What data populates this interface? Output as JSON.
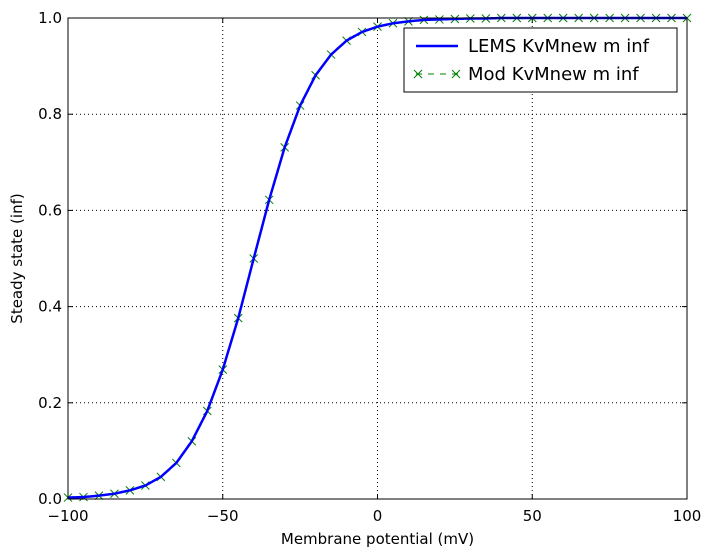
{
  "chart_data": {
    "type": "line",
    "xlabel": "Membrane potential (mV)",
    "ylabel": "Steady state (inf)",
    "xlim": [
      -100,
      100
    ],
    "ylim": [
      0,
      1
    ],
    "xticks": [
      -100,
      -50,
      0,
      50,
      100
    ],
    "xtick_labels": [
      "−100",
      "−50",
      "0",
      "50",
      "100"
    ],
    "yticks": [
      0,
      0.2,
      0.4,
      0.6,
      0.8,
      1.0
    ],
    "ytick_labels": [
      "0.0",
      "0.2",
      "0.4",
      "0.6",
      "0.8",
      "1.0"
    ],
    "grid": true,
    "legend_position": "top-right",
    "series": [
      {
        "name": "LEMS KvMnew m inf",
        "style": "solid line",
        "color": "#0000ff",
        "x": [
          -100,
          -95,
          -90,
          -85,
          -80,
          -75,
          -70,
          -65,
          -60,
          -55,
          -50,
          -45,
          -40,
          -35,
          -30,
          -25,
          -20,
          -15,
          -10,
          -5,
          0,
          5,
          10,
          15,
          20,
          25,
          30,
          35,
          40,
          45,
          50,
          55,
          60,
          65,
          70,
          75,
          80,
          85,
          90,
          95,
          100
        ],
        "y": [
          0.003,
          0.004,
          0.007,
          0.011,
          0.018,
          0.028,
          0.046,
          0.075,
          0.12,
          0.183,
          0.269,
          0.376,
          0.5,
          0.622,
          0.731,
          0.818,
          0.881,
          0.924,
          0.953,
          0.971,
          0.982,
          0.989,
          0.993,
          0.996,
          0.997,
          0.998,
          0.999,
          0.999,
          1.0,
          1.0,
          1.0,
          1.0,
          1.0,
          1.0,
          1.0,
          1.0,
          1.0,
          1.0,
          1.0,
          1.0,
          1.0
        ]
      },
      {
        "name": "Mod KvMnew m inf",
        "style": "dashed line with x markers",
        "color": "#008000",
        "x": [
          -100,
          -95,
          -90,
          -85,
          -80,
          -75,
          -70,
          -65,
          -60,
          -55,
          -50,
          -45,
          -40,
          -35,
          -30,
          -25,
          -20,
          -15,
          -10,
          -5,
          0,
          5,
          10,
          15,
          20,
          25,
          30,
          35,
          40,
          45,
          50,
          55,
          60,
          65,
          70,
          75,
          80,
          85,
          90,
          95,
          100
        ],
        "y": [
          0.003,
          0.004,
          0.007,
          0.011,
          0.018,
          0.028,
          0.046,
          0.075,
          0.12,
          0.183,
          0.269,
          0.376,
          0.5,
          0.622,
          0.731,
          0.818,
          0.881,
          0.924,
          0.953,
          0.971,
          0.982,
          0.989,
          0.993,
          0.996,
          0.997,
          0.998,
          0.999,
          0.999,
          1.0,
          1.0,
          1.0,
          1.0,
          1.0,
          1.0,
          1.0,
          1.0,
          1.0,
          1.0,
          1.0,
          1.0,
          1.0
        ]
      }
    ]
  }
}
